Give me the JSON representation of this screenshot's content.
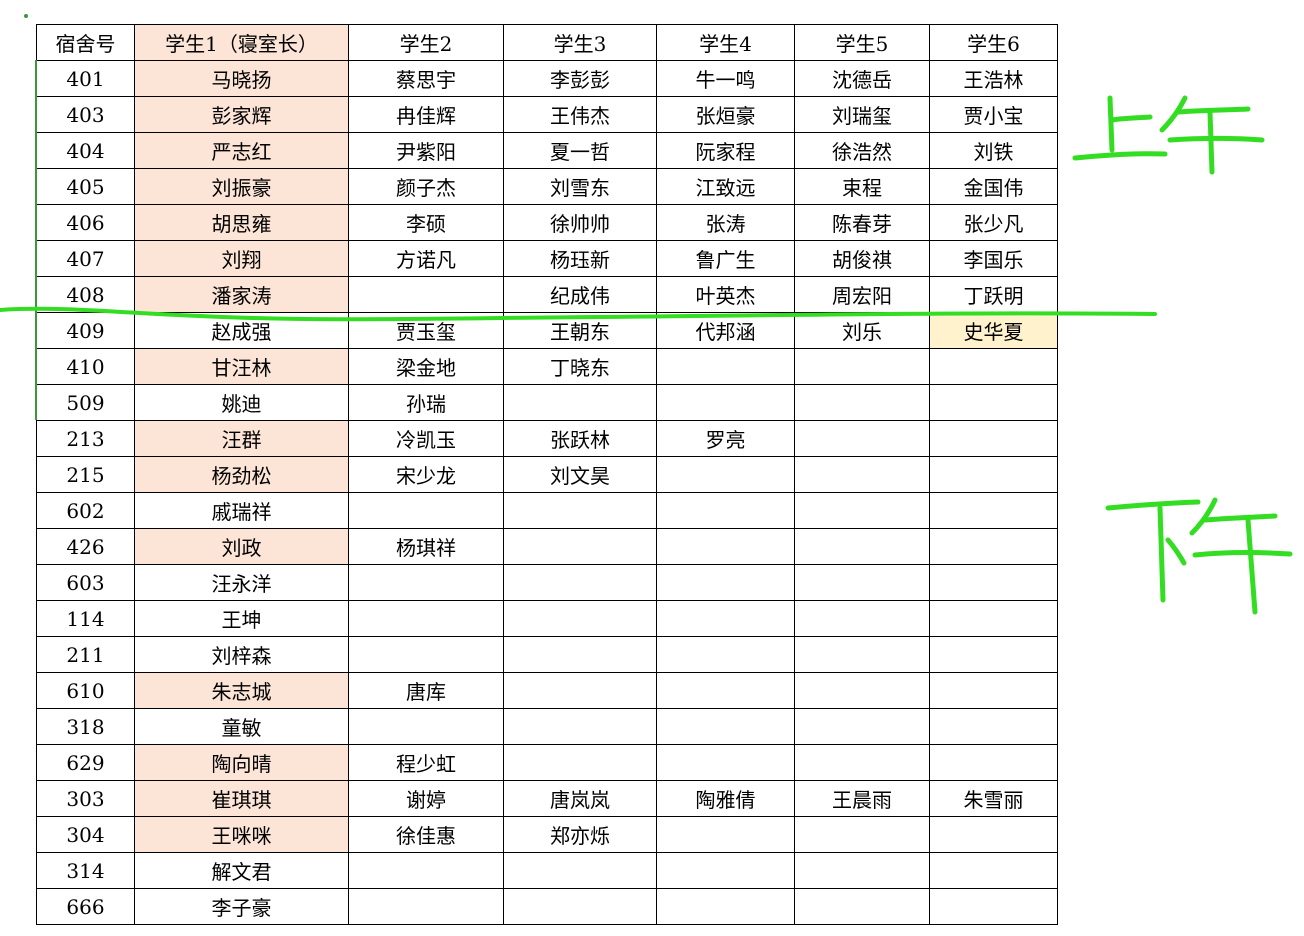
{
  "headers": [
    "宿舍号",
    "学生1（寝室长）",
    "学生2",
    "学生3",
    "学生4",
    "学生5",
    "学生6"
  ],
  "rows": [
    {
      "room": "401",
      "s1": "马晓扬",
      "s2": "蔡思宇",
      "s3": "李彭彭",
      "s4": "牛一鸣",
      "s5": "沈德岳",
      "s6": "王浩林",
      "leader_highlight": true
    },
    {
      "room": "403",
      "s1": "彭家辉",
      "s2": "冉佳辉",
      "s3": "王伟杰",
      "s4": "张烜豪",
      "s5": "刘瑞玺",
      "s6": "贾小宝",
      "leader_highlight": true
    },
    {
      "room": "404",
      "s1": "严志红",
      "s2": "尹紫阳",
      "s3": "夏一哲",
      "s4": "阮家程",
      "s5": "徐浩然",
      "s6": "刘铁",
      "leader_highlight": true
    },
    {
      "room": "405",
      "s1": "刘振豪",
      "s2": "颜子杰",
      "s3": "刘雪东",
      "s4": "江致远",
      "s5": "束程",
      "s6": "金国伟",
      "leader_highlight": true
    },
    {
      "room": "406",
      "s1": "胡思雍",
      "s2": "李硕",
      "s3": "徐帅帅",
      "s4": "张涛",
      "s5": "陈春芽",
      "s6": "张少凡",
      "leader_highlight": true
    },
    {
      "room": "407",
      "s1": "刘翔",
      "s2": "方诺凡",
      "s3": "杨珏新",
      "s4": "鲁广生",
      "s5": "胡俊祺",
      "s6": "李国乐",
      "leader_highlight": true
    },
    {
      "room": "408",
      "s1": "潘家涛",
      "s2": "",
      "s3": "纪成伟",
      "s4": "叶英杰",
      "s5": "周宏阳",
      "s6": "丁跃明",
      "leader_highlight": true
    },
    {
      "room": "409",
      "s1": "赵成强",
      "s2": "贾玉玺",
      "s3": "王朝东",
      "s4": "代邦涵",
      "s5": "刘乐",
      "s6": "史华夏",
      "leader_highlight": false,
      "s6_highlight": true
    },
    {
      "room": "410",
      "s1": "甘汪林",
      "s2": "梁金地",
      "s3": "丁晓东",
      "s4": "",
      "s5": "",
      "s6": "",
      "leader_highlight": true
    },
    {
      "room": "509",
      "s1": "姚迪",
      "s2": "孙瑞",
      "s3": "",
      "s4": "",
      "s5": "",
      "s6": "",
      "leader_highlight": false
    },
    {
      "room": "213",
      "s1": "汪群",
      "s2": "冷凯玉",
      "s3": "张跃林",
      "s4": "罗亮",
      "s5": "",
      "s6": "",
      "leader_highlight": true
    },
    {
      "room": "215",
      "s1": "杨劲松",
      "s2": "宋少龙",
      "s3": "刘文昊",
      "s4": "",
      "s5": "",
      "s6": "",
      "leader_highlight": true
    },
    {
      "room": "602",
      "s1": "戚瑞祥",
      "s2": "",
      "s3": "",
      "s4": "",
      "s5": "",
      "s6": "",
      "leader_highlight": false
    },
    {
      "room": "426",
      "s1": "刘政",
      "s2": "杨琪祥",
      "s3": "",
      "s4": "",
      "s5": "",
      "s6": "",
      "leader_highlight": true
    },
    {
      "room": "603",
      "s1": "汪永洋",
      "s2": "",
      "s3": "",
      "s4": "",
      "s5": "",
      "s6": "",
      "leader_highlight": false
    },
    {
      "room": "114",
      "s1": "王坤",
      "s2": "",
      "s3": "",
      "s4": "",
      "s5": "",
      "s6": "",
      "leader_highlight": false
    },
    {
      "room": "211",
      "s1": "刘梓森",
      "s2": "",
      "s3": "",
      "s4": "",
      "s5": "",
      "s6": "",
      "leader_highlight": false
    },
    {
      "room": "610",
      "s1": "朱志城",
      "s2": "唐库",
      "s3": "",
      "s4": "",
      "s5": "",
      "s6": "",
      "leader_highlight": true
    },
    {
      "room": "318",
      "s1": "童敏",
      "s2": "",
      "s3": "",
      "s4": "",
      "s5": "",
      "s6": "",
      "leader_highlight": false
    },
    {
      "room": "629",
      "s1": "陶向晴",
      "s2": "程少虹",
      "s3": "",
      "s4": "",
      "s5": "",
      "s6": "",
      "leader_highlight": true
    },
    {
      "room": "303",
      "s1": "崔琪琪",
      "s2": "谢婷",
      "s3": "唐岚岚",
      "s4": "陶雅倩",
      "s5": "王晨雨",
      "s6": "朱雪丽",
      "leader_highlight": true
    },
    {
      "room": "304",
      "s1": "王咪咪",
      "s2": "徐佳惠",
      "s3": "郑亦烁",
      "s4": "",
      "s5": "",
      "s6": "",
      "leader_highlight": true
    },
    {
      "room": "314",
      "s1": "解文君",
      "s2": "",
      "s3": "",
      "s4": "",
      "s5": "",
      "s6": "",
      "leader_highlight": false
    },
    {
      "room": "666",
      "s1": "李子豪",
      "s2": "",
      "s3": "",
      "s4": "",
      "s5": "",
      "s6": "",
      "leader_highlight": false
    }
  ],
  "annotations": {
    "morning": "上午",
    "afternoon": "下午"
  },
  "colors": {
    "leader_fill": "#fce4d6",
    "highlight_fill": "#fff2cc",
    "ink": "#33dd22",
    "border_green": "#3a9a3a"
  }
}
